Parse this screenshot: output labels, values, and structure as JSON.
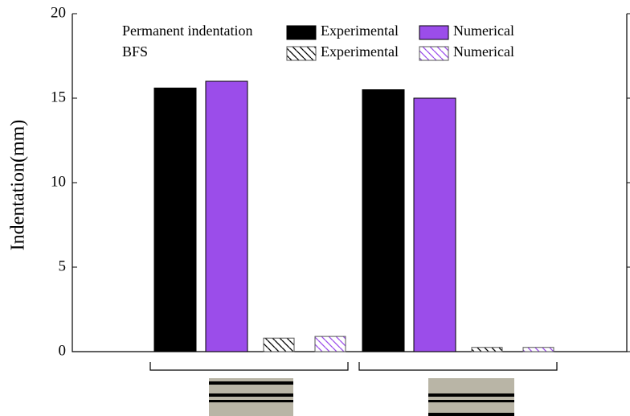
{
  "chart_data": {
    "type": "bar",
    "y_label": "Indentation(mm)",
    "categories": [
      null,
      null
    ],
    "legend_groups": [
      "Permanent indentation",
      "BFS"
    ],
    "series": [
      {
        "name": "Experimental",
        "group": 0,
        "color": "#000000",
        "hatch": false,
        "values": [
          15.6,
          15.5
        ]
      },
      {
        "name": "Numerical",
        "group": 0,
        "color": "#9b4dea",
        "hatch": false,
        "values": [
          16.0,
          15.0
        ]
      },
      {
        "name": "Experimental",
        "group": 1,
        "color": "#000000",
        "hatch": true,
        "values": [
          0.8,
          0.25
        ]
      },
      {
        "name": "Numerical",
        "group": 1,
        "color": "#9b4dea",
        "hatch": true,
        "values": [
          0.9,
          0.25
        ]
      }
    ],
    "ylim": [
      0,
      20
    ],
    "yticks": [
      0,
      5,
      10,
      15,
      20
    ]
  }
}
